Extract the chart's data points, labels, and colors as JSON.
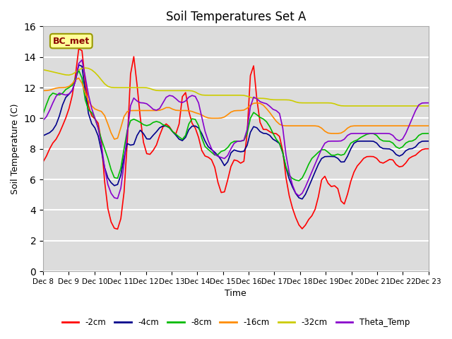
{
  "title": "Soil Temperatures Set A",
  "xlabel": "Time",
  "ylabel": "Soil Temperature (C)",
  "ylim": [
    0,
    16
  ],
  "yticks": [
    0,
    2,
    4,
    6,
    8,
    10,
    12,
    14,
    16
  ],
  "x_labels": [
    "Dec 8",
    "Dec 9",
    "Dec 10",
    "Dec 11",
    "Dec 12",
    "Dec 13",
    "Dec 14",
    "Dec 15",
    "Dec 16",
    "Dec 17",
    "Dec 18",
    "Dec 19",
    "Dec 20",
    "Dec 21",
    "Dec 22",
    "Dec 23"
  ],
  "annotation_text": "BC_met",
  "annotation_color": "#8B0000",
  "annotation_bg": "#FFFF99",
  "colors": {
    "-2cm": "#FF0000",
    "-4cm": "#00008B",
    "-8cm": "#00BB00",
    "-16cm": "#FF8C00",
    "-32cm": "#CCCC00",
    "Theta_Temp": "#8800CC"
  },
  "background_color": "#DCDCDC",
  "grid_color": "#FFFFFF",
  "legend_items": [
    "-2cm",
    "-4cm",
    "-8cm",
    "-16cm",
    "-32cm",
    "Theta_Temp"
  ]
}
